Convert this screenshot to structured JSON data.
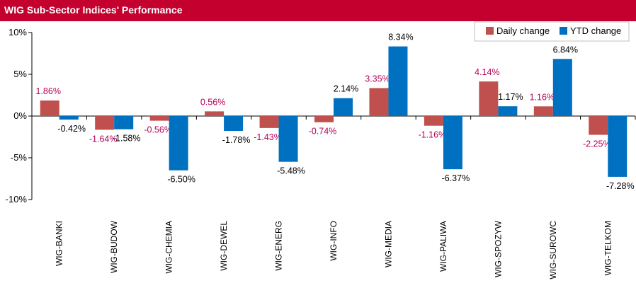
{
  "chart_data": {
    "type": "bar",
    "title": "WIG Sub-Sector Indices' Performance",
    "categories": [
      "WIG-BANKI",
      "WIG-BUDOW",
      "WIG-CHEMIA",
      "WIG-DEWEL",
      "WIG-ENERG",
      "WIG-INFO",
      "WIG-MEDIA",
      "WIG-PALIWA",
      "WIG-SPOZYW",
      "WIG-SUROWC",
      "WIG-TELKOM"
    ],
    "series": [
      {
        "name": "Daily change",
        "color": "#c0504d",
        "values": [
          1.86,
          -1.64,
          -0.56,
          0.56,
          -1.43,
          -0.74,
          3.35,
          -1.16,
          4.14,
          1.16,
          -2.25
        ],
        "labels": [
          "1.86%",
          "-1.64%",
          "-0.56%",
          "0.56%",
          "-1.43%",
          "-0.74%",
          "3.35%",
          "-1.16%",
          "4.14%",
          "1.16%",
          "-2.25%"
        ]
      },
      {
        "name": "YTD change",
        "color": "#0070c0",
        "values": [
          -0.42,
          -1.58,
          -6.5,
          -1.78,
          -5.48,
          2.14,
          8.34,
          -6.37,
          1.17,
          6.84,
          -7.28
        ],
        "labels": [
          "-0.42%",
          "-1.58%",
          "-6.50%",
          "-1.78%",
          "-5.48%",
          "2.14%",
          "8.34%",
          "-6.37%",
          "1.17%",
          "6.84%",
          "-7.28%"
        ]
      }
    ],
    "ylim": [
      -10,
      10
    ],
    "yticks": [
      10,
      5,
      0,
      -5,
      -10
    ],
    "ytick_labels": [
      "10%",
      "5%",
      "0%",
      "-5%",
      "-10%"
    ],
    "legend_position": "top-right",
    "grid": false
  }
}
